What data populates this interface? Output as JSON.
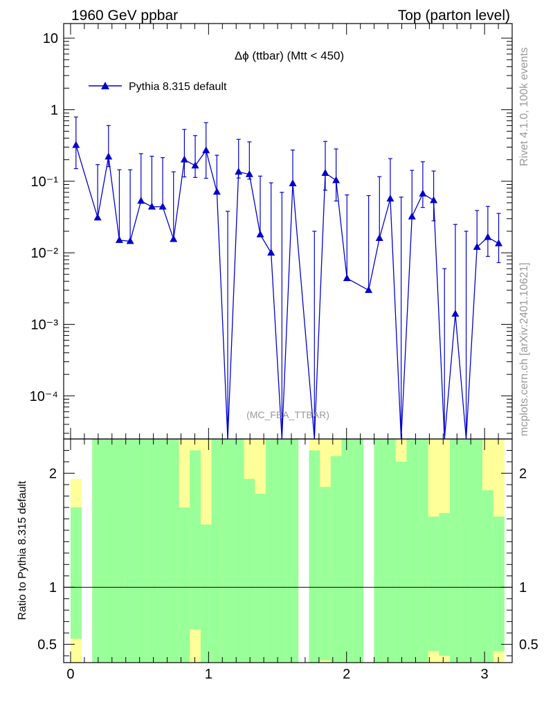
{
  "header": {
    "left": "1960 GeV ppbar",
    "right": "Top (parton level)"
  },
  "side_labels": {
    "rivet": "Rivet 4.1.0,  100k events",
    "mcplots": "mcplots.cern.ch [arXiv:2401.10621]"
  },
  "colors": {
    "series": "#0000cc",
    "band_inner": "#99ff99",
    "band_outer": "#ffff99",
    "axis": "#000000",
    "watermark": "#999999"
  },
  "chart_data": [
    {
      "type": "line",
      "title": "Δϕ (ttbar) (Mtt < 450)",
      "watermark": "(MC_FBA_TTBAR)",
      "xlabel": "",
      "ylabel": "",
      "yscale": "log",
      "xlim": [
        -0.05,
        3.2
      ],
      "ylim": [
        2.5e-05,
        16
      ],
      "ytick_labels": [
        "10",
        "1",
        "10⁻¹",
        "10⁻²",
        "10⁻³",
        "10⁻⁴"
      ],
      "legend": {
        "entry": "Pythia 8.315 default",
        "placement": "top-left"
      },
      "series": [
        {
          "name": "Pythia 8.315 default",
          "x": [
            0.0393,
            0.1963,
            0.2749,
            0.3534,
            0.432,
            0.5105,
            0.589,
            0.6676,
            0.7461,
            0.8247,
            0.9032,
            0.9817,
            1.0603,
            1.1388,
            1.2174,
            1.2959,
            1.3744,
            1.453,
            1.5315,
            1.6101,
            1.7671,
            1.8457,
            1.9242,
            2.0028,
            2.1599,
            2.2384,
            2.3169,
            2.3955,
            2.474,
            2.5525,
            2.6311,
            2.7096,
            2.7882,
            2.8667,
            2.9452,
            3.0238,
            3.1023
          ],
          "y": [
            0.32,
            0.031,
            0.22,
            0.015,
            0.0145,
            0.053,
            0.044,
            0.044,
            0.0155,
            0.2,
            0.165,
            0.27,
            0.071,
            1e-05,
            0.135,
            0.125,
            0.018,
            0.01,
            1e-05,
            0.093,
            1e-05,
            0.13,
            0.103,
            0.0044,
            0.003,
            0.016,
            0.057,
            1e-05,
            0.032,
            0.067,
            0.054,
            1e-05,
            0.0014,
            1e-05,
            0.012,
            0.0165,
            0.0135
          ],
          "err_up": [
            0.47,
            0.14,
            0.38,
            0.13,
            0.13,
            0.19,
            0.18,
            0.17,
            0.12,
            0.33,
            0.27,
            0.39,
            0.16,
            0.038,
            0.25,
            0.23,
            0.1,
            0.085,
            0.07,
            0.18,
            0.02,
            0.23,
            0.18,
            0.06,
            0.06,
            0.1,
            0.15,
            0.06,
            0.11,
            0.12,
            0.085,
            0.006,
            0.0235,
            0.02,
            0.027,
            0.028,
            0.022
          ],
          "err_down": [
            0.17,
            1e-05,
            0.06,
            1e-05,
            1e-05,
            1e-05,
            1e-05,
            1e-05,
            1e-05,
            0.085,
            0.052,
            0.16,
            1e-05,
            1e-05,
            0.024,
            0.018,
            1e-05,
            1e-05,
            1e-05,
            1e-05,
            1e-05,
            0.055,
            0.05,
            1e-05,
            1e-05,
            1e-05,
            1e-05,
            1e-05,
            1e-05,
            0.024,
            0.026,
            1e-05,
            1e-05,
            1e-05,
            1e-05,
            0.0076,
            0.0062
          ]
        }
      ]
    },
    {
      "type": "area",
      "title": "",
      "xlabel": "",
      "ylabel": "Ratio to Pythia 8.315 default",
      "xlim": [
        -0.05,
        3.2
      ],
      "ylim": [
        0.34,
        2.3
      ],
      "xticks": [
        0,
        1,
        2,
        3
      ],
      "xtick_labels": [
        "0",
        "1",
        "2",
        "3"
      ],
      "yticks": [
        0.5,
        1,
        2
      ],
      "ytick_labels": [
        "0.5",
        "1",
        "2"
      ],
      "reference_line": 1,
      "bins": {
        "x_low": [
          0.0,
          0.0785,
          0.1571,
          0.2356,
          0.3142,
          0.3927,
          0.4712,
          0.5498,
          0.6283,
          0.7069,
          0.7854,
          0.8639,
          0.9425,
          1.021,
          1.0996,
          1.1781,
          1.2566,
          1.3352,
          1.4137,
          1.4923,
          1.5708,
          1.6493,
          1.7279,
          1.8064,
          1.885,
          1.9635,
          2.042,
          2.1206,
          2.1991,
          2.2777,
          2.3562,
          2.4347,
          2.5133,
          2.5918,
          2.6704,
          2.7489,
          2.8274,
          2.906,
          2.9845,
          3.0631
        ],
        "x_high": [
          0.0785,
          0.1571,
          0.2356,
          0.3142,
          0.3927,
          0.4712,
          0.5498,
          0.6283,
          0.7069,
          0.7854,
          0.8639,
          0.9425,
          1.021,
          1.0996,
          1.1781,
          1.2566,
          1.3352,
          1.4137,
          1.4923,
          1.5708,
          1.6493,
          1.7279,
          1.8064,
          1.885,
          1.9635,
          2.042,
          2.1206,
          2.1991,
          2.2777,
          2.3562,
          2.4347,
          2.5133,
          2.5918,
          2.6704,
          2.7489,
          2.8274,
          2.906,
          2.9845,
          3.0631,
          3.1416
        ],
        "inner_low": [
          0.55,
          null,
          0.3,
          0.3,
          0.3,
          0.3,
          0.3,
          0.3,
          0.3,
          0.3,
          0.3,
          0.63,
          0.3,
          0.3,
          0.3,
          0.3,
          0.3,
          0.3,
          0.3,
          0.3,
          0.3,
          null,
          0.3,
          0.36,
          0.3,
          0.3,
          0.3,
          null,
          0.3,
          0.3,
          0.3,
          0.3,
          0.3,
          0.44,
          0.4,
          0.3,
          0.3,
          0.3,
          0.3,
          0.44
        ],
        "inner_high": [
          1.7,
          null,
          2.4,
          2.4,
          2.4,
          2.4,
          2.4,
          2.4,
          2.4,
          2.4,
          1.7,
          2.2,
          1.55,
          2.4,
          2.4,
          2.4,
          1.95,
          1.82,
          2.4,
          2.4,
          2.4,
          null,
          2.2,
          1.88,
          2.15,
          2.4,
          2.4,
          null,
          2.4,
          2.4,
          2.1,
          2.4,
          2.4,
          1.62,
          1.65,
          2.4,
          2.4,
          2.4,
          1.85,
          1.62
        ],
        "outer_low": [
          0.3,
          null,
          0.3,
          0.3,
          0.3,
          0.3,
          0.3,
          0.3,
          0.3,
          0.3,
          0.3,
          0.3,
          0.3,
          0.3,
          0.3,
          0.3,
          0.3,
          0.3,
          0.3,
          0.3,
          0.3,
          null,
          0.3,
          0.3,
          0.3,
          0.3,
          0.3,
          null,
          0.3,
          0.3,
          0.3,
          0.3,
          0.3,
          0.3,
          0.3,
          0.3,
          0.3,
          0.3,
          0.3,
          0.3
        ],
        "outer_high": [
          1.95,
          null,
          2.4,
          1.75,
          2.4,
          2.4,
          2.4,
          2.4,
          2.4,
          2.4,
          2.3,
          2.4,
          2.4,
          2.4,
          2.4,
          2.4,
          2.4,
          2.4,
          2.4,
          2.4,
          2.4,
          null,
          2.4,
          2.3,
          2.4,
          2.4,
          2.4,
          null,
          2.4,
          2.4,
          2.4,
          2.4,
          2.3,
          2.4,
          2.4,
          2.4,
          2.4,
          2.4,
          2.4,
          2.4
        ]
      }
    }
  ]
}
